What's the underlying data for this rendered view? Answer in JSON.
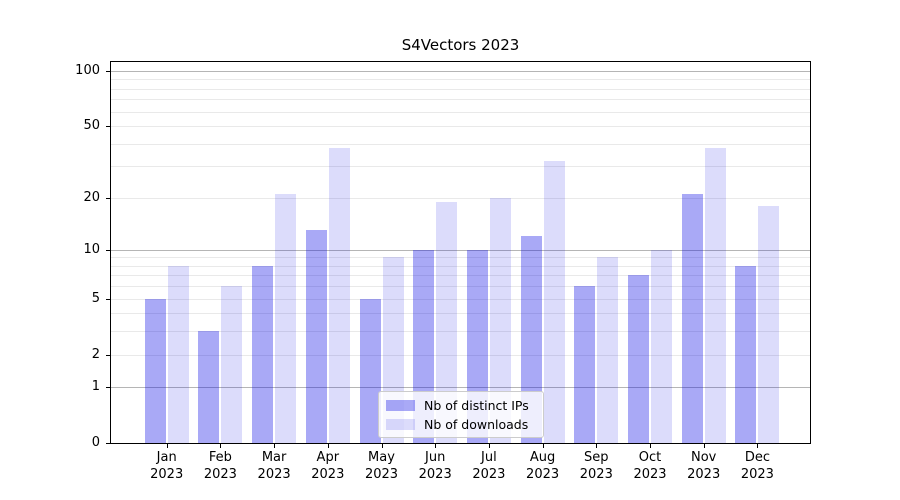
{
  "title": "S4Vectors 2023",
  "colors": {
    "distinct_ips_bar": "rgba(10,10,230,0.35)",
    "downloads_bar": "rgba(10,10,230,0.14)",
    "major_gridline": "#b5b5b5",
    "minor_gridline": "#e9e9e9",
    "axis": "#000000"
  },
  "legend": {
    "items": [
      {
        "label": "Nb of distinct IPs",
        "color": "rgba(10,10,230,0.35)"
      },
      {
        "label": "Nb of downloads",
        "color": "rgba(10,10,230,0.14)"
      }
    ]
  },
  "chart_data": {
    "type": "bar",
    "title": "S4Vectors 2023",
    "categories": [
      "Jan 2023",
      "Feb 2023",
      "Mar 2023",
      "Apr 2023",
      "May 2023",
      "Jun 2023",
      "Jul 2023",
      "Aug 2023",
      "Sep 2023",
      "Oct 2023",
      "Nov 2023",
      "Dec 2023"
    ],
    "category_months": [
      "Jan",
      "Feb",
      "Mar",
      "Apr",
      "May",
      "Jun",
      "Jul",
      "Aug",
      "Sep",
      "Oct",
      "Nov",
      "Dec"
    ],
    "category_year": "2023",
    "series": [
      {
        "name": "Nb of distinct IPs",
        "values": [
          5,
          3,
          8,
          13,
          5,
          10,
          10,
          12,
          6,
          7,
          21,
          8
        ]
      },
      {
        "name": "Nb of downloads",
        "values": [
          8,
          6,
          21,
          38,
          9,
          19,
          20,
          32,
          9,
          10,
          38,
          18
        ]
      }
    ],
    "xlabel": "",
    "ylabel": "",
    "yscale": "log1p",
    "ytick_labels": [
      0,
      1,
      2,
      5,
      10,
      20,
      50,
      100
    ],
    "major_gridlines": [
      1,
      10,
      100
    ],
    "minor_gridlines": [
      2,
      3,
      4,
      5,
      6,
      7,
      8,
      9,
      20,
      30,
      40,
      50,
      60,
      70,
      80,
      90
    ],
    "ylim": [
      0,
      112
    ],
    "grid": true,
    "legend_position": "lower center"
  }
}
